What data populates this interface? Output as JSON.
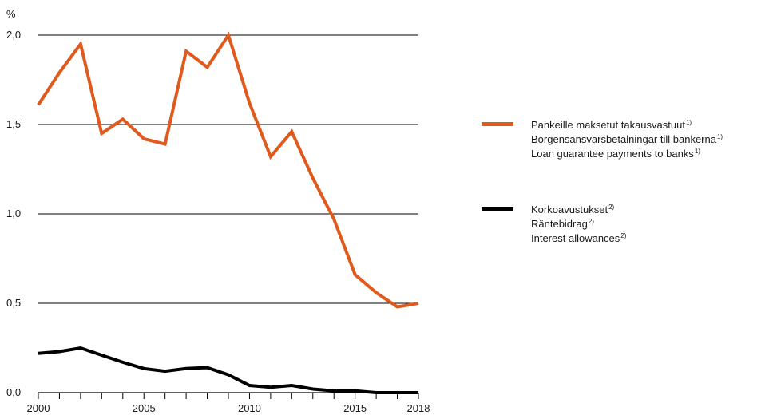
{
  "chart_data": {
    "type": "line",
    "y_unit": "%",
    "ylim": [
      0,
      2.0
    ],
    "xlim": [
      2000,
      2018
    ],
    "y_ticks": [
      {
        "value": 0.0,
        "label": "0,0"
      },
      {
        "value": 0.5,
        "label": "0,5"
      },
      {
        "value": 1.0,
        "label": "1,0"
      },
      {
        "value": 1.5,
        "label": "1,5"
      },
      {
        "value": 2.0,
        "label": "2,0"
      }
    ],
    "x_ticks": [
      {
        "value": 2000,
        "label": "2000"
      },
      {
        "value": 2005,
        "label": "2005"
      },
      {
        "value": 2010,
        "label": "2010"
      },
      {
        "value": 2015,
        "label": "2015"
      },
      {
        "value": 2018,
        "label": "2018"
      }
    ],
    "grid": "horizontal",
    "legend_position": "right",
    "x": [
      2000,
      2001,
      2002,
      2003,
      2004,
      2005,
      2006,
      2007,
      2008,
      2009,
      2010,
      2011,
      2012,
      2013,
      2014,
      2015,
      2016,
      2017,
      2018
    ],
    "series": [
      {
        "color": "#e05a1e",
        "values": [
          1.61,
          1.79,
          1.95,
          1.45,
          1.53,
          1.42,
          1.39,
          1.91,
          1.82,
          2.0,
          1.62,
          1.32,
          1.46,
          1.2,
          0.97,
          0.66,
          0.56,
          0.48,
          0.5
        ]
      },
      {
        "color": "#000000",
        "values": [
          0.22,
          0.23,
          0.25,
          0.21,
          0.17,
          0.135,
          0.12,
          0.135,
          0.14,
          0.1,
          0.04,
          0.03,
          0.04,
          0.02,
          0.01,
          0.01,
          0.0,
          0.0,
          0.0
        ]
      }
    ],
    "legend": [
      {
        "color": "#e05a1e",
        "lines": [
          {
            "text": "Pankeille maksetut takausvastuut",
            "note": "1)"
          },
          {
            "text": "Borgensansvarsbetalningar till bankerna",
            "note": "1)"
          },
          {
            "text": "Loan guarantee payments to banks",
            "note": "1)"
          }
        ]
      },
      {
        "color": "#000000",
        "lines": [
          {
            "text": "Korkoavustukset",
            "note": "2)"
          },
          {
            "text": "Räntebidrag",
            "note": "2)"
          },
          {
            "text": "Interest allowances",
            "note": "2)"
          }
        ]
      }
    ]
  }
}
